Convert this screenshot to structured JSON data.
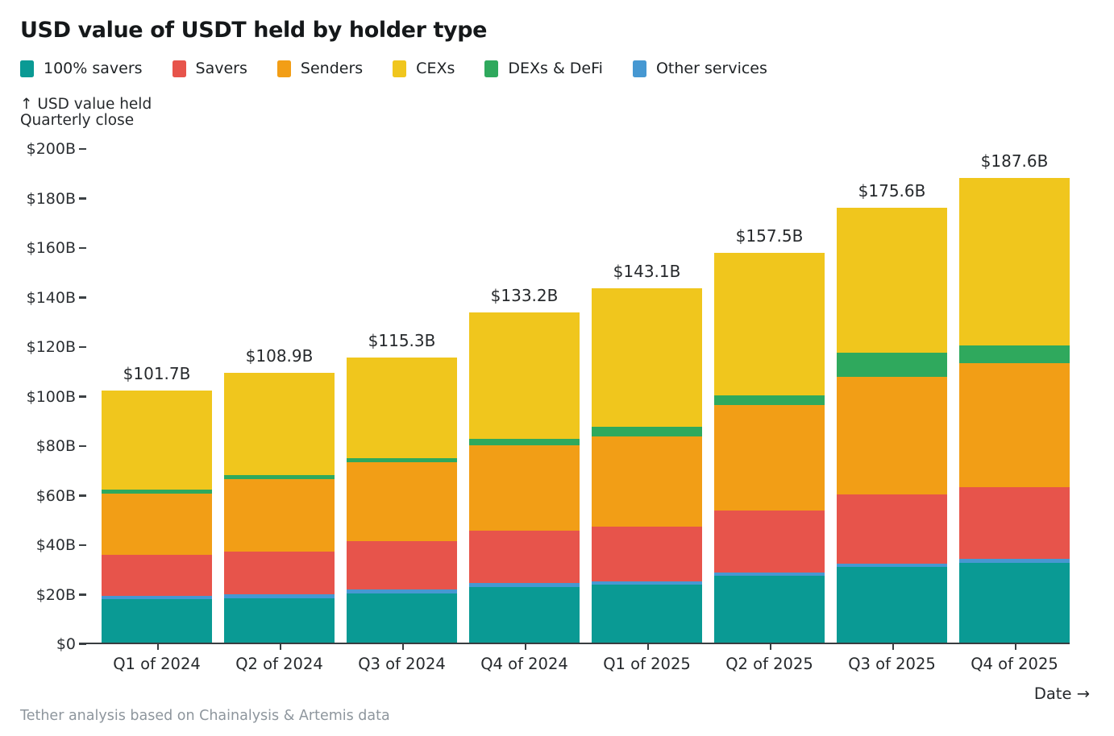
{
  "title": "USD value of USDT held by holder type",
  "legend": [
    {
      "label": "100% savers",
      "color": "#0a9a94"
    },
    {
      "label": "Savers",
      "color": "#e7544b"
    },
    {
      "label": "Senders",
      "color": "#f29e16"
    },
    {
      "label": "CEXs",
      "color": "#f0c61d"
    },
    {
      "label": "DEXs & DeFi",
      "color": "#2fa95d"
    },
    {
      "label": "Other services",
      "color": "#4698d2"
    }
  ],
  "axis_note": {
    "line1": "↑ USD value held",
    "line2": "Quarterly close"
  },
  "date_label": "Date →",
  "footer": "Tether analysis based on Chainalysis & Artemis data",
  "colors": {
    "axis_line": "#383d40",
    "tick_text": "#2b2f33",
    "title_text": "#15181a",
    "footer_text": "#8e969d"
  },
  "chart_data": {
    "type": "bar",
    "stacked": true,
    "title": "USD value of USDT held by holder type",
    "ylabel": "USD value held",
    "xlabel": "Date",
    "ylim": [
      0,
      200
    ],
    "grid": false,
    "legend_position": "top",
    "categories": [
      "Q1 of 2024",
      "Q2 of 2024",
      "Q3 of 2024",
      "Q4 of 2024",
      "Q1 of 2025",
      "Q2 of 2025",
      "Q3 of 2025",
      "Q4 of 2025"
    ],
    "totals_labels": [
      "$101.7B",
      "$108.9B",
      "$115.3B",
      "$133.2B",
      "$143.1B",
      "$157.5B",
      "$175.6B",
      "$187.6B"
    ],
    "totals_values": [
      101.7,
      108.9,
      115.3,
      133.2,
      143.1,
      157.5,
      175.6,
      187.6
    ],
    "stack_order": "bottom to top",
    "series": [
      {
        "name": "100% savers",
        "color": "#0a9a94",
        "values": [
          17.5,
          18.0,
          20.0,
          22.5,
          23.4,
          27.0,
          30.6,
          32.3
        ]
      },
      {
        "name": "Other services",
        "color": "#4698d2",
        "values": [
          1.4,
          1.4,
          1.5,
          1.5,
          1.4,
          1.4,
          1.4,
          1.5
        ]
      },
      {
        "name": "Savers",
        "color": "#e7544b",
        "values": [
          16.4,
          17.4,
          19.5,
          21.3,
          22.1,
          25.1,
          27.9,
          28.9
        ]
      },
      {
        "name": "Senders",
        "color": "#f29e16",
        "values": [
          25.0,
          29.3,
          32.0,
          34.5,
          36.5,
          42.5,
          47.5,
          50.0
        ]
      },
      {
        "name": "DEXs & DeFi",
        "color": "#2fa95d",
        "values": [
          1.6,
          1.7,
          1.6,
          2.6,
          3.9,
          4.0,
          9.6,
          7.3
        ]
      },
      {
        "name": "CEXs",
        "color": "#f0c61d",
        "values": [
          39.8,
          41.1,
          40.7,
          50.8,
          55.8,
          57.5,
          58.6,
          67.6
        ]
      }
    ],
    "y_ticks": [
      {
        "label": "$200B",
        "value": 200
      },
      {
        "label": "$180B",
        "value": 180
      },
      {
        "label": "$160B",
        "value": 160
      },
      {
        "label": "$140B",
        "value": 140
      },
      {
        "label": "$120B",
        "value": 120
      },
      {
        "label": "$100B",
        "value": 100
      },
      {
        "label": "$80B",
        "value": 80
      },
      {
        "label": "$60B",
        "value": 60
      },
      {
        "label": "$40B",
        "value": 40
      },
      {
        "label": "$20B",
        "value": 20
      },
      {
        "label": "$0",
        "value": 0
      }
    ]
  }
}
